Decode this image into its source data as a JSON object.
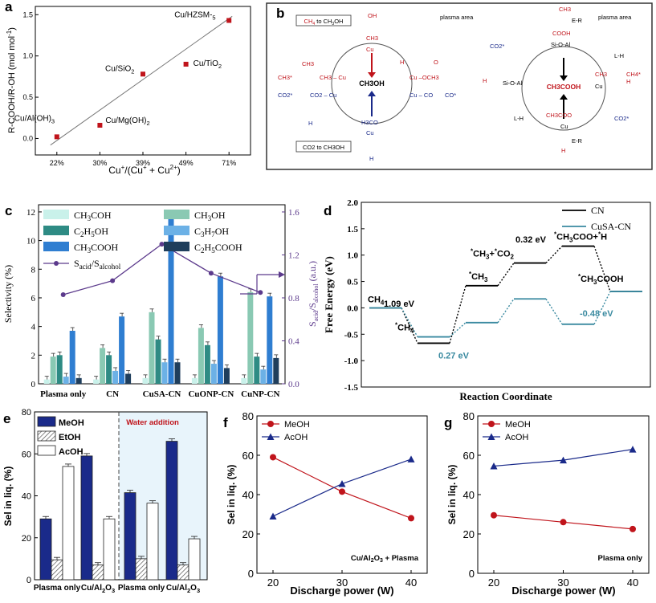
{
  "colors": {
    "red": "#c0141b",
    "navy": "#1a2a8a",
    "mint": "#c9f1ea",
    "sage": "#8ac9b3",
    "teal": "#2e8b84",
    "sky": "#6cb1e6",
    "blue": "#2f7ed1",
    "darknavy": "#1f3e5c",
    "purple": "#5c3a8c",
    "cusa": "#3a8aa0",
    "lightblue_bg": "#e8f4fb"
  },
  "panel_b": {
    "label": "b",
    "left": {
      "tag_top": "CH4 to CH3OH",
      "tag_bottom": "CO2 to CH3OH",
      "plasma_area": "plasma area",
      "center": "CH3OH",
      "species": [
        "OH",
        "CH3",
        "Cu",
        "CH3",
        "CH3 – Cu",
        "CH3*",
        "H",
        "Cu –OCH3",
        "O",
        "CO2*",
        "CO2 – Cu",
        "Cu – CO",
        "CO*",
        "H",
        "H3CO",
        "Cu",
        "H"
      ]
    },
    "right": {
      "plasma_area": "plasma area",
      "center": "CH3COOH",
      "species": [
        "CH3",
        "E-R",
        "COOH",
        "Si-O-Al",
        "L-H",
        "CO2*",
        "H",
        "Si-O-Al",
        "CH3",
        "Cu",
        "CH4*",
        "H",
        "CH3COOH",
        "CH3COO",
        "Cu",
        "CO2*",
        "L-H",
        "H",
        "E-R"
      ],
      "steps": [
        "①",
        "②",
        "③",
        "④",
        "⑤"
      ]
    }
  },
  "chart_data": [
    {
      "id": "a",
      "type": "scatter",
      "label": "a",
      "categories": [
        "22%",
        "30%",
        "39%",
        "49%",
        "71%"
      ],
      "values": [
        0.02,
        0.16,
        0.78,
        0.9,
        1.43
      ],
      "point_labels": [
        "Cu/Al(OH)3",
        "Cu/Mg(OH)2",
        "Cu/SiO2",
        "Cu/TiO2",
        "Cu/HZSM-5"
      ],
      "xlabel": "Cu+/(Cu+ + Cu2+)",
      "ylabel": "R-COOH/R-OH (mol mol-1)",
      "ylim": [
        -0.2,
        1.6
      ],
      "yticks": [
        "0.0",
        "0.5",
        "1.0",
        "1.5"
      ],
      "trendline": [
        -0.08,
        1.48
      ]
    },
    {
      "id": "c",
      "type": "bar",
      "label": "c",
      "categories": [
        "Plasma only",
        "CN",
        "CuSA-CN",
        "CuONP-CN",
        "CuNP-CN"
      ],
      "series": [
        {
          "name": "CH3COH",
          "values": [
            0.3,
            0.3,
            0.4,
            0.4,
            0.4
          ]
        },
        {
          "name": "CH3OH",
          "values": [
            1.9,
            2.5,
            5.0,
            3.9,
            6.4
          ]
        },
        {
          "name": "C2H5OH",
          "values": [
            2.0,
            2.0,
            3.1,
            2.7,
            1.9
          ]
        },
        {
          "name": "C3H7OH",
          "values": [
            0.5,
            0.9,
            1.5,
            1.4,
            1.0
          ]
        },
        {
          "name": "CH3COOH",
          "values": [
            3.7,
            4.7,
            11.8,
            7.5,
            6.1
          ]
        },
        {
          "name": "C2H5COOH",
          "values": [
            0.4,
            0.7,
            1.5,
            1.1,
            1.8
          ]
        }
      ],
      "ratio_series": {
        "name": "Sacid/Salcohol",
        "values": [
          0.83,
          0.96,
          1.3,
          1.03,
          0.85
        ]
      },
      "ylabel": "Selectivity (%)",
      "y2label": "Sacid/Salcohol (a.u.)",
      "ylim": [
        0,
        12.5
      ],
      "yticks": [
        "0",
        "2",
        "4",
        "6",
        "8",
        "10",
        "12"
      ],
      "y2lim": [
        0,
        1.667
      ],
      "y2ticks": [
        "0.0",
        "0.4",
        "0.8",
        "1.2",
        "1.6"
      ],
      "legend": [
        "CH3COH",
        "CH3OH",
        "C2H5OH",
        "C3H7OH",
        "CH3COOH",
        "C2H5COOH",
        "Sacid/Salcohol"
      ]
    },
    {
      "id": "d",
      "type": "line",
      "label": "d",
      "xlabel": "Reaction Coordinate",
      "ylabel": "Free Energy (eV)",
      "ylim": [
        -1.5,
        2.0
      ],
      "yticks": [
        "-1.5",
        "-1.0",
        "-0.5",
        "0.0",
        "0.5",
        "1.0",
        "1.5",
        "2.0"
      ],
      "series": [
        {
          "name": "CN",
          "values": [
            0.0,
            -0.67,
            0.42,
            0.85,
            1.17,
            0.31
          ]
        },
        {
          "name": "CuSA-CN",
          "values": [
            0.0,
            -0.55,
            -0.28,
            0.17,
            -0.31,
            0.31
          ]
        }
      ],
      "annotations": {
        "ch4": "CH4",
        "ch4_ads": "*CH4",
        "ch3": "*CH3",
        "ch3co2": "*CH3+*CO2",
        "ch3coo": "*CH3COO+*H",
        "ch3cooh": "*CH3COOH",
        "e109": "1.09 eV",
        "e032": "0.32 eV",
        "e027": "0.27 eV",
        "e048": "-0.48 eV"
      }
    },
    {
      "id": "e",
      "type": "bar",
      "label": "e",
      "categories": [
        "Plasma only",
        "Cu/Al2O3",
        "Plasma only",
        "Cu/Al2O3"
      ],
      "series": [
        {
          "name": "MeOH",
          "values": [
            29,
            59,
            41.5,
            66
          ]
        },
        {
          "name": "EtOH",
          "values": [
            9.5,
            7,
            10,
            7
          ]
        },
        {
          "name": "AcOH",
          "values": [
            54,
            29,
            36.5,
            19.5
          ]
        }
      ],
      "ylabel": "Sel in liq. (%)",
      "ylim": [
        0,
        80
      ],
      "yticks": [
        "0",
        "20",
        "40",
        "60",
        "80"
      ],
      "annotation": "Water addition"
    },
    {
      "id": "f",
      "type": "line",
      "label": "f",
      "x": [
        20,
        30,
        40
      ],
      "series": [
        {
          "name": "MeOH",
          "values": [
            59,
            41.5,
            28
          ]
        },
        {
          "name": "AcOH",
          "values": [
            29,
            45.5,
            58
          ]
        }
      ],
      "xlabel": "Discharge power (W)",
      "ylabel": "Sel in liq. (%)",
      "ylim": [
        0,
        80
      ],
      "yticks": [
        "0",
        "20",
        "40",
        "60",
        "80"
      ],
      "xticks": [
        "20",
        "30",
        "40"
      ],
      "annotation": "Cu/Al2O3 + Plasma"
    },
    {
      "id": "g",
      "type": "line",
      "label": "g",
      "x": [
        20,
        30,
        40
      ],
      "series": [
        {
          "name": "MeOH",
          "values": [
            29.5,
            26,
            22.5
          ]
        },
        {
          "name": "AcOH",
          "values": [
            54.5,
            57.5,
            63
          ]
        }
      ],
      "xlabel": "Discharge power (W)",
      "ylabel": "Sel in liq. (%)",
      "ylim": [
        0,
        80
      ],
      "yticks": [
        "0",
        "20",
        "40",
        "60",
        "80"
      ],
      "xticks": [
        "20",
        "30",
        "40"
      ],
      "annotation": "Plasma only"
    }
  ]
}
